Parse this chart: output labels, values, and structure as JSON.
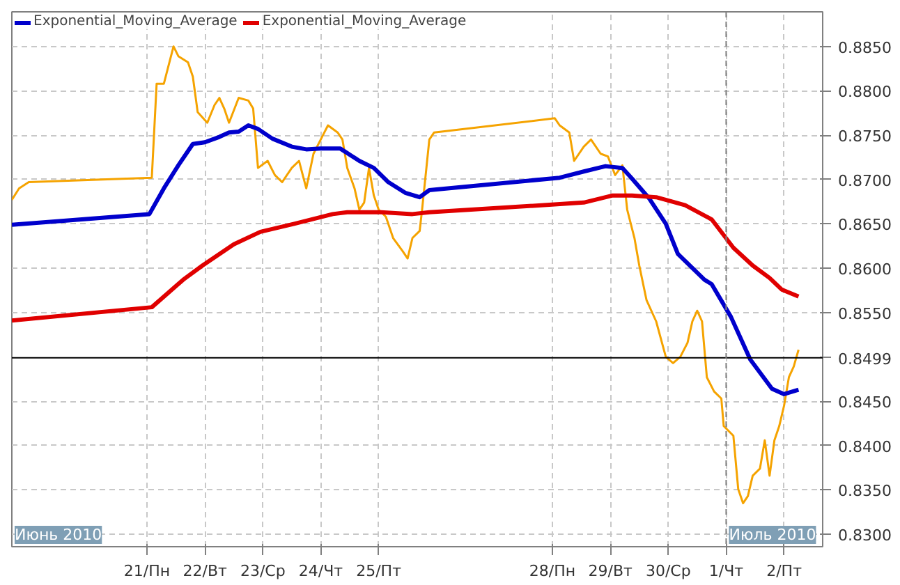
{
  "chart_data": {
    "type": "line",
    "xlim": [
      "2010-06-18T16:00",
      "2010-07-02T16:00"
    ],
    "ylim": [
      0.8286,
      0.8889
    ],
    "xticks": [
      {
        "value": "2010-06-21",
        "label": "21/Пн"
      },
      {
        "value": "2010-06-22",
        "label": "22/Вт"
      },
      {
        "value": "2010-06-23",
        "label": "23/Ср"
      },
      {
        "value": "2010-06-24",
        "label": "24/Чт"
      },
      {
        "value": "2010-06-25",
        "label": "25/Пт"
      },
      {
        "value": "2010-06-28",
        "label": "28/Пн"
      },
      {
        "value": "2010-06-29",
        "label": "29/Вт"
      },
      {
        "value": "2010-06-30",
        "label": "30/Ср"
      },
      {
        "value": "2010-07-01",
        "label": "1/Чт"
      },
      {
        "value": "2010-07-02",
        "label": "2/Пт"
      }
    ],
    "yticks": [
      {
        "value": 0.83,
        "label": "0.8300"
      },
      {
        "value": 0.835,
        "label": "0.8350"
      },
      {
        "value": 0.84,
        "label": "0.8400"
      },
      {
        "value": 0.845,
        "label": "0.8450"
      },
      {
        "value": 0.855,
        "label": "0.8550"
      },
      {
        "value": 0.86,
        "label": "0.8600"
      },
      {
        "value": 0.865,
        "label": "0.8650"
      },
      {
        "value": 0.87,
        "label": "0.8700"
      },
      {
        "value": 0.875,
        "label": "0.8750"
      },
      {
        "value": 0.88,
        "label": "0.8800"
      },
      {
        "value": 0.885,
        "label": "0.8850"
      }
    ],
    "grid": true,
    "legend": "top left",
    "line_style": "solid",
    "series": [
      {
        "color": "#f5a300",
        "x": [
          "2010-06-18T16:00",
          "2010-06-18T19:00",
          "2010-06-18T23:00",
          "2010-06-21T02:00",
          "2010-06-21T04:00",
          "2010-06-21T07:00",
          "2010-06-21T11:00",
          "2010-06-21T13:00",
          "2010-06-21T17:00",
          "2010-06-21T19:00",
          "2010-06-21T21:00",
          "2010-06-22T01:00",
          "2010-06-22T04:00",
          "2010-06-22T06:00",
          "2010-06-22T08:00",
          "2010-06-22T10:00",
          "2010-06-22T14:00",
          "2010-06-22T18:00",
          "2010-06-22T20:00",
          "2010-06-22T22:00",
          "2010-06-23T02:00",
          "2010-06-23T05:00",
          "2010-06-23T08:00",
          "2010-06-23T12:00",
          "2010-06-23T15:00",
          "2010-06-23T18:00",
          "2010-06-23T21:00",
          "2010-06-24T00:00",
          "2010-06-24T03:00",
          "2010-06-24T07:00",
          "2010-06-24T09:00",
          "2010-06-24T11:00",
          "2010-06-24T14:00",
          "2010-06-24T16:00",
          "2010-06-24T18:00",
          "2010-06-24T20:00",
          "2010-06-24T22:00",
          "2010-06-25T00:00",
          "2010-06-25T03:00",
          "2010-06-25T06:00",
          "2010-06-25T10:00",
          "2010-06-25T12:00",
          "2010-06-25T14:00",
          "2010-06-25T17:00",
          "2010-06-25T18:00",
          "2010-06-25T21:00",
          "2010-06-25T23:00",
          "2010-06-28T01:00",
          "2010-06-28T03:00",
          "2010-06-28T07:00",
          "2010-06-28T09:00",
          "2010-06-28T13:00",
          "2010-06-28T16:00",
          "2010-06-28T20:00",
          "2010-06-28T23:00",
          "2010-06-29T02:00",
          "2010-06-29T05:00",
          "2010-06-29T07:00",
          "2010-06-29T10:00",
          "2010-06-29T12:00",
          "2010-06-29T15:00",
          "2010-06-29T19:00",
          "2010-06-29T23:00",
          "2010-06-30T02:00",
          "2010-06-30T05:00",
          "2010-06-30T08:00",
          "2010-06-30T10:00",
          "2010-06-30T12:00",
          "2010-06-30T14:00",
          "2010-06-30T16:00",
          "2010-06-30T19:00",
          "2010-06-30T22:00",
          "2010-06-30T23:00",
          "2010-07-01T03:00",
          "2010-07-01T05:00",
          "2010-07-01T07:00",
          "2010-07-01T09:00",
          "2010-07-01T11:00",
          "2010-07-01T14:00",
          "2010-07-01T16:00",
          "2010-07-01T18:00",
          "2010-07-01T20:00",
          "2010-07-01T22:00",
          "2010-07-02T00:00",
          "2010-07-02T02:00",
          "2010-07-02T04:00",
          "2010-07-02T06:00"
        ],
        "values": [
          0.8677,
          0.869,
          0.8697,
          0.8702,
          0.8808,
          0.8808,
          0.885,
          0.8839,
          0.8832,
          0.8816,
          0.8776,
          0.8764,
          0.8784,
          0.8792,
          0.878,
          0.8764,
          0.8792,
          0.8789,
          0.878,
          0.8713,
          0.8721,
          0.8705,
          0.8697,
          0.8713,
          0.8721,
          0.869,
          0.8729,
          0.8745,
          0.8761,
          0.8753,
          0.8745,
          0.8713,
          0.869,
          0.8666,
          0.8674,
          0.8713,
          0.8682,
          0.8666,
          0.8658,
          0.8634,
          0.8619,
          0.8611,
          0.8634,
          0.8642,
          0.8666,
          0.8745,
          0.8753,
          0.8769,
          0.8761,
          0.8753,
          0.8721,
          0.8737,
          0.8745,
          0.8729,
          0.8726,
          0.8705,
          0.8716,
          0.8666,
          0.8634,
          0.8603,
          0.8564,
          0.854,
          0.85,
          0.8493,
          0.85,
          0.8516,
          0.854,
          0.8552,
          0.854,
          0.8477,
          0.8461,
          0.8453,
          0.8422,
          0.8411,
          0.8351,
          0.8335,
          0.8343,
          0.8366,
          0.8374,
          0.8406,
          0.8366,
          0.8406,
          0.8422,
          0.8445,
          0.8477,
          0.8489,
          0.8508
        ]
      },
      {
        "name": "Exponential_Moving_Average",
        "color": "#0000cc",
        "x": [
          "2010-06-18T16:00",
          "2010-06-21T01:00",
          "2010-06-21T07:00",
          "2010-06-21T13:00",
          "2010-06-21T19:00",
          "2010-06-22T00:00",
          "2010-06-22T06:00",
          "2010-06-22T10:00",
          "2010-06-22T14:00",
          "2010-06-22T18:00",
          "2010-06-22T22:00",
          "2010-06-23T04:00",
          "2010-06-23T12:00",
          "2010-06-23T18:00",
          "2010-06-24T00:00",
          "2010-06-24T08:00",
          "2010-06-24T16:00",
          "2010-06-24T22:00",
          "2010-06-25T04:00",
          "2010-06-25T11:00",
          "2010-06-25T17:00",
          "2010-06-25T21:00",
          "2010-06-28T03:00",
          "2010-06-28T13:00",
          "2010-06-28T22:00",
          "2010-06-29T05:00",
          "2010-06-29T09:00",
          "2010-06-29T16:00",
          "2010-06-29T23:00",
          "2010-06-30T04:00",
          "2010-06-30T15:00",
          "2010-06-30T18:00",
          "2010-07-01T02:00",
          "2010-07-01T10:00",
          "2010-07-01T19:00",
          "2010-07-02T00:00",
          "2010-07-02T06:00"
        ],
        "values": [
          0.8649,
          0.8661,
          0.869,
          0.8716,
          0.874,
          0.8742,
          0.8748,
          0.8753,
          0.8754,
          0.8761,
          0.8757,
          0.8746,
          0.8737,
          0.8734,
          0.8735,
          0.8735,
          0.8721,
          0.8713,
          0.8697,
          0.8685,
          0.868,
          0.8688,
          0.8702,
          0.8709,
          0.8715,
          0.8713,
          0.8701,
          0.8679,
          0.865,
          0.8616,
          0.8587,
          0.8582,
          0.8545,
          0.8497,
          0.8464,
          0.8458,
          0.8463
        ]
      },
      {
        "name": "Exponential_Moving_Average",
        "color": "#e00000",
        "x": [
          "2010-06-18T16:00",
          "2010-06-21T02:00",
          "2010-06-21T15:00",
          "2010-06-21T23:00",
          "2010-06-22T12:00",
          "2010-06-22T23:00",
          "2010-06-23T13:00",
          "2010-06-24T05:00",
          "2010-06-24T11:00",
          "2010-06-25T01:00",
          "2010-06-25T14:00",
          "2010-06-25T21:00",
          "2010-06-28T13:00",
          "2010-06-29T01:00",
          "2010-06-29T09:00",
          "2010-06-29T19:00",
          "2010-06-30T07:00",
          "2010-06-30T18:00",
          "2010-07-01T03:00",
          "2010-07-01T11:00",
          "2010-07-01T18:00",
          "2010-07-01T23:00",
          "2010-07-02T06:00"
        ],
        "values": [
          0.8541,
          0.8556,
          0.8587,
          0.8603,
          0.8627,
          0.8641,
          0.865,
          0.8661,
          0.8663,
          0.8663,
          0.8661,
          0.8663,
          0.8674,
          0.8682,
          0.8682,
          0.868,
          0.8671,
          0.8655,
          0.8623,
          0.8603,
          0.8589,
          0.8576,
          0.8568
        ]
      }
    ],
    "ref_lines": [
      {
        "axis": "y",
        "value": 0.8499,
        "label": "0.8499",
        "color": "#000000",
        "line_style": "solid"
      },
      {
        "axis": "x",
        "value": "2010-07-01",
        "color": "#808080",
        "line_style": "dashed"
      }
    ],
    "annotations": [
      "Июнь 2010",
      "Июль 2010"
    ]
  }
}
